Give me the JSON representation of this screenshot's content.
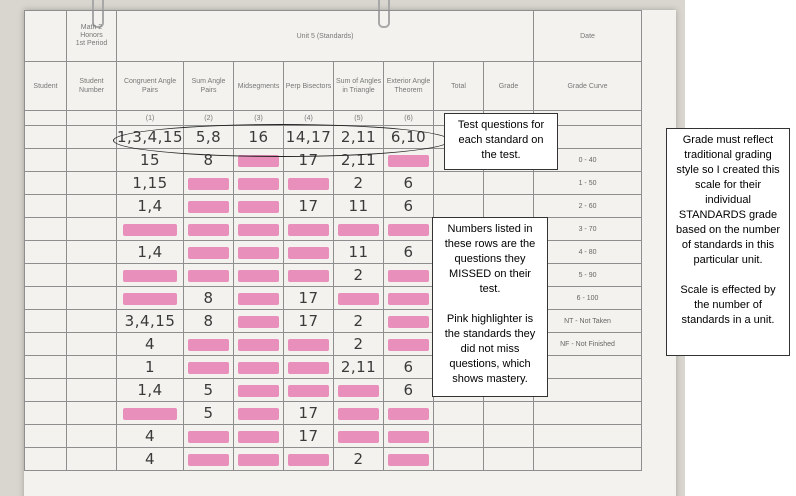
{
  "sheet": {
    "class_label": [
      "Math 2",
      "Honors",
      "1st Period"
    ],
    "unit_label": "Unit  5  (Standards)",
    "date_label": "Date",
    "columns": [
      {
        "label": "Student",
        "num": ""
      },
      {
        "label": "Student Number",
        "num": ""
      },
      {
        "label": "Congruent Angle Pairs",
        "num": "(1)"
      },
      {
        "label": "Sum Angle Pairs",
        "num": "(2)"
      },
      {
        "label": "Midsegments",
        "num": "(3)"
      },
      {
        "label": "Perp Bisectors",
        "num": "(4)"
      },
      {
        "label": "Sum of Angles in Triangle",
        "num": "(5)"
      },
      {
        "label": "Exterior Angle Theorem",
        "num": "(6)"
      },
      {
        "label": "Total",
        "num": ""
      },
      {
        "label": "Grade",
        "num": ""
      },
      {
        "label": "Grade Curve",
        "num": ""
      }
    ],
    "question_row": [
      "1,3,4,15",
      "5,8",
      "16",
      "14,17",
      "2,11",
      "6,10"
    ],
    "rows": [
      {
        "cells": [
          "15",
          "8",
          "",
          "17",
          "2,11",
          ""
        ],
        "hl": [
          0,
          0,
          1,
          0,
          0,
          1
        ],
        "curve": "0 - 40"
      },
      {
        "cells": [
          "1,15",
          "",
          "",
          "",
          "2",
          "6"
        ],
        "hl": [
          0,
          1,
          1,
          1,
          0,
          0
        ],
        "curve": "1 - 50"
      },
      {
        "cells": [
          "1,4",
          "",
          "",
          "17",
          "11",
          "6"
        ],
        "hl": [
          0,
          1,
          1,
          0,
          0,
          0
        ],
        "curve": "2 - 60"
      },
      {
        "cells": [
          "",
          "",
          "",
          "",
          "",
          ""
        ],
        "hl": [
          1,
          1,
          1,
          1,
          1,
          1
        ],
        "curve": "3 - 70"
      },
      {
        "cells": [
          "1,4",
          "",
          "",
          "",
          "11",
          "6"
        ],
        "hl": [
          0,
          1,
          1,
          1,
          0,
          0
        ],
        "curve": "4 - 80"
      },
      {
        "cells": [
          "",
          "",
          "",
          "",
          "2",
          ""
        ],
        "hl": [
          1,
          1,
          1,
          1,
          0,
          1
        ],
        "curve": "5 - 90"
      },
      {
        "cells": [
          "",
          "8",
          "",
          "17",
          "",
          ""
        ],
        "hl": [
          1,
          0,
          1,
          0,
          1,
          1
        ],
        "curve": "6 - 100"
      },
      {
        "cells": [
          "3,4,15",
          "8",
          "",
          "17",
          "2",
          ""
        ],
        "hl": [
          0,
          0,
          1,
          0,
          0,
          1
        ],
        "curve": "NT - Not Taken"
      },
      {
        "cells": [
          "4",
          "",
          "",
          "",
          "2",
          ""
        ],
        "hl": [
          0,
          1,
          1,
          1,
          0,
          1
        ],
        "curve": "NF - Not Finished"
      },
      {
        "cells": [
          "1",
          "",
          "",
          "",
          "2,11",
          "6"
        ],
        "hl": [
          0,
          1,
          1,
          1,
          0,
          0
        ],
        "curve": ""
      },
      {
        "cells": [
          "1,4",
          "5",
          "",
          "",
          "",
          "6"
        ],
        "hl": [
          0,
          0,
          1,
          1,
          1,
          0
        ],
        "curve": ""
      },
      {
        "cells": [
          "",
          "5",
          "",
          "17",
          "",
          ""
        ],
        "hl": [
          1,
          0,
          1,
          0,
          1,
          1
        ],
        "curve": ""
      },
      {
        "cells": [
          "4",
          "",
          "",
          "17",
          "",
          ""
        ],
        "hl": [
          0,
          1,
          1,
          0,
          1,
          1
        ],
        "curve": ""
      },
      {
        "cells": [
          "4",
          "",
          "",
          "",
          "2",
          ""
        ],
        "hl": [
          0,
          1,
          1,
          1,
          0,
          1
        ],
        "curve": ""
      }
    ]
  },
  "callouts": {
    "test_questions": "Test questions for each standard on the test.",
    "missed": {
      "p1": "Numbers listed in these rows are the questions they MISSED on their test.",
      "p2": "Pink highlighter is the standards they did not miss questions, which shows mastery."
    },
    "scale": {
      "p1": "Grade must reflect traditional grading style so I created this scale for their individual STANDARDS grade based on the number of standards in this particular unit.",
      "p2": "Scale is effected by the number of standards in a unit."
    }
  },
  "colors": {
    "highlighter": "#e57fb2",
    "paper": "#f3f2ee"
  }
}
